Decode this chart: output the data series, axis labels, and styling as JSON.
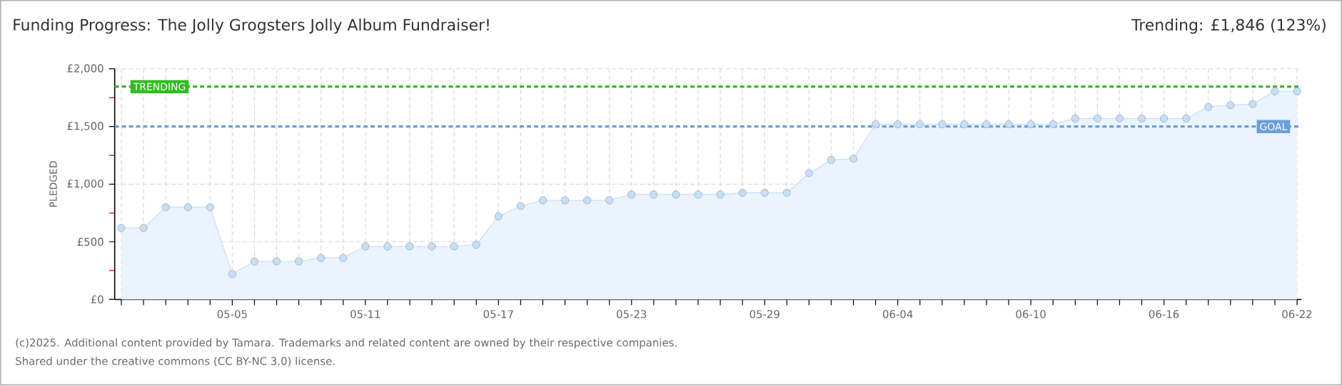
{
  "chart_data": {
    "type": "area",
    "title": "Funding Progress: The Jolly Grogsters Jolly Album Fundraiser!",
    "subtitle": "Trending: £1,846 (123%)",
    "ylabel": "PLEDGED",
    "categories": [
      null,
      null,
      null,
      null,
      null,
      "05-05",
      null,
      null,
      null,
      null,
      null,
      "05-11",
      null,
      null,
      null,
      null,
      null,
      "05-17",
      null,
      null,
      null,
      null,
      null,
      "05-23",
      null,
      null,
      null,
      null,
      null,
      "05-29",
      null,
      null,
      null,
      null,
      null,
      "06-04",
      null,
      null,
      null,
      null,
      null,
      "06-10",
      null,
      null,
      null,
      null,
      null,
      "06-16",
      null,
      null,
      null,
      null,
      null,
      "06-22"
    ],
    "series": [
      {
        "color": "#c6def7",
        "values": [
          620,
          620,
          800,
          800,
          800,
          220,
          330,
          330,
          330,
          360,
          360,
          460,
          460,
          460,
          460,
          460,
          475,
          720,
          810,
          860,
          860,
          860,
          860,
          910,
          910,
          910,
          910,
          910,
          925,
          925,
          925,
          1095,
          1210,
          1220,
          1520,
          1520,
          1520,
          1520,
          1520,
          1520,
          1520,
          1520,
          1520,
          1570,
          1570,
          1570,
          1570,
          1570,
          1570,
          1670,
          1685,
          1695,
          1805,
          1805
        ]
      }
    ],
    "ylim": [
      0,
      2000
    ],
    "yticks": [
      {
        "value": 0,
        "label": "£0"
      },
      {
        "value": 500,
        "label": "£500"
      },
      {
        "value": 1000,
        "label": "£1,000"
      },
      {
        "value": 1500,
        "label": "£1,500"
      },
      {
        "value": 2000,
        "label": "£2,000"
      }
    ],
    "ref_lines": [
      {
        "axis": "y",
        "value": 1846,
        "label": "TRENDING",
        "color": "#33bb22",
        "line_style": "dashed"
      },
      {
        "axis": "y",
        "value": 1500,
        "label": "GOAL",
        "color": "#6a9fd8",
        "line_style": "dashed"
      }
    ],
    "grid": true,
    "marker": "circle",
    "annotations": [
      "(c)2025. Additional content provided by Tamara. Trademarks and related content are owned by their respective companies.",
      "Shared under the creative commons (CC BY-NC 3.0) license."
    ]
  }
}
